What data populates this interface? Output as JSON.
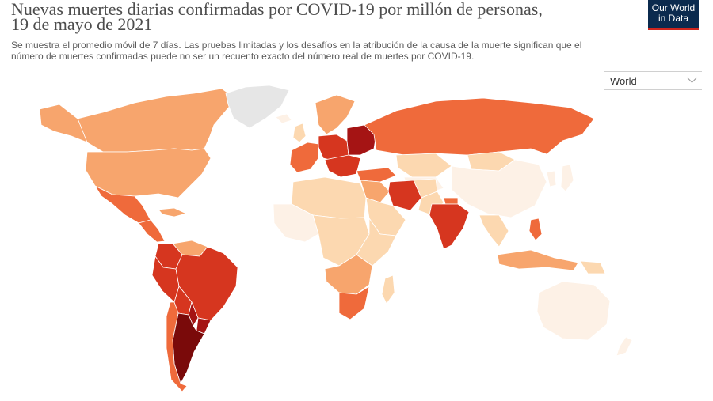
{
  "title": {
    "line1": "Nuevas muertes diarias confirmadas por COVID-19 por millón de personas,",
    "line2": "19 de mayo de 2021"
  },
  "logo": {
    "line1": "Our World",
    "line2": "in Data"
  },
  "subtitle": {
    "line1": "Se muestra el promedio móvil de 7 días. Las pruebas limitadas y los desafíos en la atribución de la causa de la muerte significan que el",
    "line2": "número de muertes confirmadas puede no ser un recuento exacto del número real de muertes por COVID-19."
  },
  "region_select": {
    "value": "World"
  },
  "colors": {
    "no_data": "#e6e6e6",
    "very_low": "#fdf1e6",
    "low": "#fcd8b0",
    "medium": "#f7a56d",
    "high": "#ef6a3b",
    "very_high": "#d6361f",
    "extreme": "#a51414",
    "max": "#7a0a0a"
  },
  "regions": [
    {
      "name": "Canada",
      "level": "medium"
    },
    {
      "name": "Alaska",
      "level": "medium"
    },
    {
      "name": "Greenland",
      "level": "no_data"
    },
    {
      "name": "United States",
      "level": "medium"
    },
    {
      "name": "Mexico",
      "level": "high"
    },
    {
      "name": "Central America",
      "level": "high"
    },
    {
      "name": "Caribbean",
      "level": "medium"
    },
    {
      "name": "Colombia",
      "level": "very_high"
    },
    {
      "name": "Venezuela",
      "level": "medium"
    },
    {
      "name": "Peru",
      "level": "very_high"
    },
    {
      "name": "Brazil",
      "level": "very_high"
    },
    {
      "name": "Bolivia",
      "level": "very_high"
    },
    {
      "name": "Paraguay",
      "level": "extreme"
    },
    {
      "name": "Argentina",
      "level": "max"
    },
    {
      "name": "Chile",
      "level": "high"
    },
    {
      "name": "Uruguay",
      "level": "extreme"
    },
    {
      "name": "Iceland",
      "level": "very_low"
    },
    {
      "name": "Scandinavia",
      "level": "medium"
    },
    {
      "name": "United Kingdom",
      "level": "low"
    },
    {
      "name": "Western Europe",
      "level": "high"
    },
    {
      "name": "Central Europe",
      "level": "very_high"
    },
    {
      "name": "Eastern Europe",
      "level": "extreme"
    },
    {
      "name": "Balkans",
      "level": "very_high"
    },
    {
      "name": "Turkey",
      "level": "high"
    },
    {
      "name": "Russia",
      "level": "high"
    },
    {
      "name": "Kazakhstan",
      "level": "low"
    },
    {
      "name": "Central Asia",
      "level": "very_low"
    },
    {
      "name": "Mongolia",
      "level": "low"
    },
    {
      "name": "China",
      "level": "very_low"
    },
    {
      "name": "Japan",
      "level": "very_low"
    },
    {
      "name": "Korea",
      "level": "very_low"
    },
    {
      "name": "Middle East",
      "level": "medium"
    },
    {
      "name": "Iran",
      "level": "very_high"
    },
    {
      "name": "Saudi Arabia",
      "level": "low"
    },
    {
      "name": "Pakistan",
      "level": "low"
    },
    {
      "name": "Afghanistan",
      "level": "low"
    },
    {
      "name": "India",
      "level": "very_high"
    },
    {
      "name": "Nepal",
      "level": "high"
    },
    {
      "name": "Southeast Asia",
      "level": "low"
    },
    {
      "name": "Philippines",
      "level": "high"
    },
    {
      "name": "Indonesia",
      "level": "medium"
    },
    {
      "name": "Papua New Guinea",
      "level": "low"
    },
    {
      "name": "North Africa",
      "level": "low"
    },
    {
      "name": "West Africa",
      "level": "very_low"
    },
    {
      "name": "Central Africa",
      "level": "low"
    },
    {
      "name": "East Africa",
      "level": "low"
    },
    {
      "name": "Southern Africa",
      "level": "medium"
    },
    {
      "name": "South Africa",
      "level": "high"
    },
    {
      "name": "Madagascar",
      "level": "low"
    },
    {
      "name": "Australia",
      "level": "very_low"
    },
    {
      "name": "New Zealand",
      "level": "very_low"
    }
  ]
}
